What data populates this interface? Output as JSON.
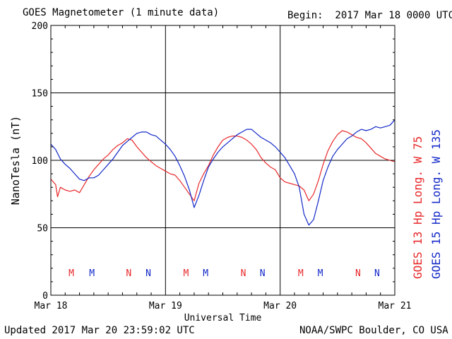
{
  "header": {
    "title": "GOES Magnetometer (1 minute data)",
    "begin": "Begin:  2017 Mar 18 0000 UTC"
  },
  "footer": {
    "updated": "Updated 2017 Mar 20 23:59:02 UTC",
    "source": "NOAA/SWPC Boulder, CO USA"
  },
  "colors": {
    "goes13": "#e8282a",
    "goes15": "#1228c8",
    "grid": "#000000"
  },
  "chart_data": {
    "type": "line",
    "xlabel": "Universal Time",
    "ylabel": "NanoTesla (nT)",
    "ylim": [
      0,
      200
    ],
    "yticks": [
      0,
      50,
      100,
      150,
      200
    ],
    "xlim_hours": [
      0,
      72
    ],
    "xticks": [
      {
        "hour": 0,
        "label": "Mar 18"
      },
      {
        "hour": 24,
        "label": "Mar 19"
      },
      {
        "hour": 48,
        "label": "Mar 20"
      },
      {
        "hour": 72,
        "label": "Mar 21"
      }
    ],
    "grid": true,
    "legend": [
      {
        "text": "GOES 13 Hp  Long. W 75",
        "color": "#e8282a"
      },
      {
        "text": "GOES 15 Hp  Long. W 135",
        "color": "#1228c8"
      }
    ],
    "markers": [
      {
        "hour": 4.3,
        "label": "M",
        "color": "#e8282a"
      },
      {
        "hour": 8.6,
        "label": "M",
        "color": "#1228c8"
      },
      {
        "hour": 16.3,
        "label": "N",
        "color": "#e8282a"
      },
      {
        "hour": 20.4,
        "label": "N",
        "color": "#1228c8"
      },
      {
        "hour": 28.3,
        "label": "M",
        "color": "#e8282a"
      },
      {
        "hour": 32.4,
        "label": "M",
        "color": "#1228c8"
      },
      {
        "hour": 40.3,
        "label": "N",
        "color": "#e8282a"
      },
      {
        "hour": 44.3,
        "label": "N",
        "color": "#1228c8"
      },
      {
        "hour": 52.3,
        "label": "M",
        "color": "#e8282a"
      },
      {
        "hour": 56.4,
        "label": "M",
        "color": "#1228c8"
      },
      {
        "hour": 64.3,
        "label": "N",
        "color": "#e8282a"
      },
      {
        "hour": 68.3,
        "label": "N",
        "color": "#1228c8"
      }
    ],
    "series": [
      {
        "name": "GOES 13 Hp  Long. W 75",
        "color": "#e8282a",
        "x": [
          0,
          1,
          1.4,
          2,
          3,
          4,
          5,
          6,
          7,
          8,
          9,
          10,
          11,
          12,
          13,
          14,
          15,
          16,
          17,
          18,
          19,
          20,
          21,
          22,
          23,
          24,
          25,
          26,
          27,
          28,
          29,
          30,
          31,
          32,
          33,
          34,
          35,
          36,
          37,
          38,
          39,
          40,
          41,
          42,
          43,
          44,
          45,
          46,
          47,
          48,
          49,
          50,
          51,
          52,
          53,
          54,
          55,
          56,
          57,
          58,
          59,
          60,
          61,
          62,
          63,
          64,
          65,
          66,
          67,
          68,
          69,
          70,
          71,
          72
        ],
        "y": [
          86,
          82,
          73,
          80,
          78,
          77,
          78,
          76,
          82,
          88,
          93,
          97,
          101,
          104,
          108,
          111,
          113,
          116,
          115,
          110,
          106,
          102,
          99,
          96,
          94,
          92,
          90,
          89,
          85,
          80,
          75,
          70,
          83,
          90,
          96,
          104,
          110,
          115,
          117,
          118,
          118,
          117,
          115,
          112,
          108,
          102,
          98,
          95,
          93,
          87,
          84,
          83,
          82,
          81,
          78,
          70,
          75,
          85,
          97,
          107,
          114,
          119,
          122,
          121,
          119,
          117,
          116,
          113,
          109,
          105,
          103,
          101,
          100,
          99
        ]
      },
      {
        "name": "GOES 15 Hp  Long. W 135",
        "color": "#1228c8",
        "x": [
          0,
          1,
          2,
          3,
          4,
          5,
          6,
          7,
          8,
          9,
          10,
          11,
          12,
          13,
          14,
          15,
          16,
          17,
          18,
          19,
          20,
          21,
          22,
          23,
          24,
          25,
          26,
          27,
          28,
          29,
          30,
          31,
          32,
          33,
          34,
          35,
          36,
          37,
          38,
          39,
          40,
          41,
          42,
          43,
          44,
          45,
          46,
          47,
          48,
          49,
          50,
          51,
          52,
          53,
          54,
          55,
          56,
          57,
          58,
          59,
          60,
          61,
          62,
          63,
          64,
          65,
          66,
          67,
          68,
          69,
          70,
          71,
          72
        ],
        "y": [
          112,
          108,
          101,
          97,
          94,
          90,
          86,
          85,
          87,
          87,
          89,
          93,
          97,
          101,
          106,
          111,
          114,
          117,
          120,
          121,
          121,
          119,
          118,
          115,
          112,
          108,
          103,
          96,
          88,
          78,
          65,
          74,
          85,
          95,
          101,
          106,
          110,
          113,
          116,
          119,
          121,
          123,
          123,
          120,
          117,
          115,
          113,
          110,
          106,
          102,
          96,
          90,
          80,
          60,
          52,
          56,
          70,
          85,
          95,
          103,
          108,
          112,
          116,
          118,
          121,
          123,
          122,
          123,
          125,
          124,
          125,
          126,
          130
        ]
      }
    ]
  }
}
